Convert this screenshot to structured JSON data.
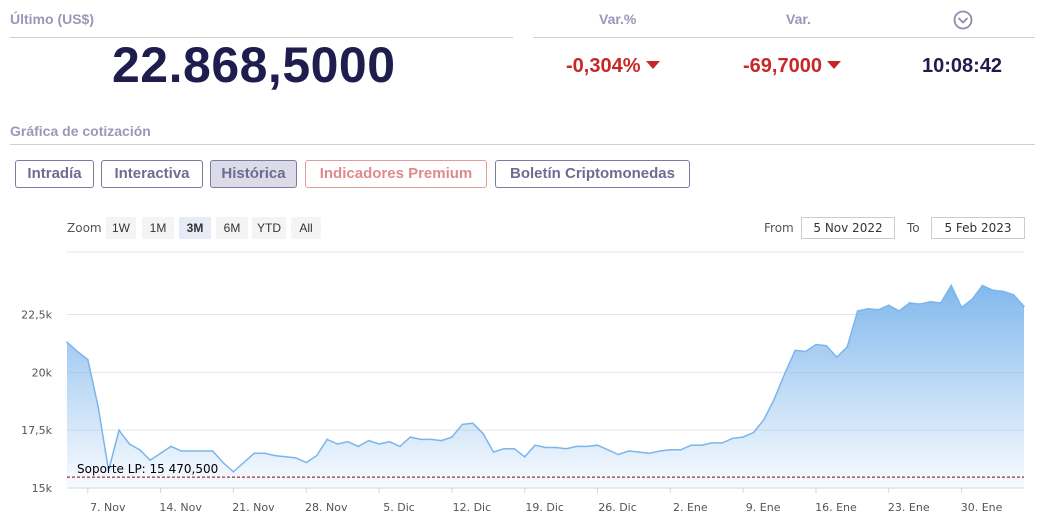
{
  "header": {
    "ultimo_label": "Último (US$)",
    "price": "22.868,5000",
    "varpct_label": "Var.%",
    "varpct_value": "-0,304%",
    "var_label": "Var.",
    "var_value": "-69,7000",
    "time": "10:08:42",
    "clock_icon": "chevron-down-circle-icon"
  },
  "section_title": "Gráfica de cotización",
  "tabs": [
    {
      "label": "Intradía",
      "active": false
    },
    {
      "label": "Interactiva",
      "active": false
    },
    {
      "label": "Histórica",
      "active": true
    },
    {
      "label": "Indicadores Premium",
      "active": false
    },
    {
      "label": "Boletín Criptomonedas",
      "active": false
    }
  ],
  "zoom": {
    "label": "Zoom",
    "options": [
      "1W",
      "1M",
      "3M",
      "6M",
      "YTD",
      "All"
    ],
    "selected": "3M"
  },
  "range": {
    "from_label": "From",
    "from_value": "5 Nov 2022",
    "to_label": "To",
    "to_value": "5 Feb 2023"
  },
  "colors": {
    "line": "#7cb5ec",
    "fill_top": "#7cb5ec",
    "support": "#8b0000",
    "negative": "#c62828",
    "dark": "#1f1d4d"
  },
  "chart_data": {
    "type": "area",
    "title": "",
    "xlabel": "",
    "ylabel": "",
    "x_start": "5 Nov 2022",
    "x_end": "5 Feb 2023",
    "x_ticks": [
      "7. Nov",
      "14. Nov",
      "21. Nov",
      "28. Nov",
      "5. Dic",
      "12. Dic",
      "19. Dic",
      "26. Dic",
      "2. Ene",
      "9. Ene",
      "16. Ene",
      "23. Ene",
      "30. Ene"
    ],
    "y_ticks": [
      "15k",
      "17,5k",
      "20k",
      "22,5k"
    ],
    "y_tick_values": [
      15000,
      17500,
      20000,
      22500
    ],
    "ylim": [
      15000,
      25200
    ],
    "grid": true,
    "support_line": {
      "label": "Soporte LP: 15 470,500",
      "value": 15470.5
    },
    "series": [
      {
        "x": [
          "5 Nov 2022",
          "6 Nov 2022",
          "7 Nov 2022",
          "8 Nov 2022",
          "9 Nov 2022",
          "10 Nov 2022",
          "11 Nov 2022",
          "12 Nov 2022",
          "13 Nov 2022",
          "14 Nov 2022",
          "15 Nov 2022",
          "16 Nov 2022",
          "17 Nov 2022",
          "18 Nov 2022",
          "19 Nov 2022",
          "20 Nov 2022",
          "21 Nov 2022",
          "22 Nov 2022",
          "23 Nov 2022",
          "24 Nov 2022",
          "25 Nov 2022",
          "26 Nov 2022",
          "27 Nov 2022",
          "28 Nov 2022",
          "29 Nov 2022",
          "30 Nov 2022",
          "1 Dic 2022",
          "2 Dic 2022",
          "3 Dic 2022",
          "4 Dic 2022",
          "5 Dic 2022",
          "6 Dic 2022",
          "7 Dic 2022",
          "8 Dic 2022",
          "9 Dic 2022",
          "10 Dic 2022",
          "11 Dic 2022",
          "12 Dic 2022",
          "13 Dic 2022",
          "14 Dic 2022",
          "15 Dic 2022",
          "16 Dic 2022",
          "17 Dic 2022",
          "18 Dic 2022",
          "19 Dic 2022",
          "20 Dic 2022",
          "21 Dic 2022",
          "22 Dic 2022",
          "23 Dic 2022",
          "24 Dic 2022",
          "25 Dic 2022",
          "26 Dic 2022",
          "27 Dic 2022",
          "28 Dic 2022",
          "29 Dic 2022",
          "30 Dic 2022",
          "31 Dic 2022",
          "1 Ene 2023",
          "2 Ene 2023",
          "3 Ene 2023",
          "4 Ene 2023",
          "5 Ene 2023",
          "6 Ene 2023",
          "7 Ene 2023",
          "8 Ene 2023",
          "9 Ene 2023",
          "10 Ene 2023",
          "11 Ene 2023",
          "12 Ene 2023",
          "13 Ene 2023",
          "14 Ene 2023",
          "15 Ene 2023",
          "16 Ene 2023",
          "17 Ene 2023",
          "18 Ene 2023",
          "19 Ene 2023",
          "20 Ene 2023",
          "21 Ene 2023",
          "22 Ene 2023",
          "23 Ene 2023",
          "24 Ene 2023",
          "25 Ene 2023",
          "26 Ene 2023",
          "27 Ene 2023",
          "28 Ene 2023",
          "29 Ene 2023",
          "30 Ene 2023",
          "31 Ene 2023",
          "1 Feb 2023",
          "2 Feb 2023",
          "3 Feb 2023",
          "4 Feb 2023",
          "5 Feb 2023"
        ],
        "values": [
          21300,
          20900,
          20550,
          18500,
          15750,
          17500,
          16900,
          16650,
          16200,
          16500,
          16800,
          16600,
          16600,
          16600,
          16600,
          16100,
          15700,
          16100,
          16500,
          16500,
          16400,
          16350,
          16300,
          16100,
          16400,
          17100,
          16900,
          17000,
          16800,
          17050,
          16900,
          17000,
          16800,
          17200,
          17100,
          17100,
          17050,
          17200,
          17750,
          17800,
          17350,
          16550,
          16700,
          16700,
          16350,
          16850,
          16750,
          16750,
          16700,
          16800,
          16800,
          16850,
          16650,
          16450,
          16600,
          16550,
          16500,
          16600,
          16650,
          16650,
          16850,
          16850,
          16950,
          16950,
          17150,
          17200,
          17400,
          17950,
          18850,
          19950,
          20950,
          20900,
          21200,
          21150,
          20650,
          21100,
          22650,
          22750,
          22700,
          22900,
          22650,
          23000,
          22950,
          23050,
          23000,
          23750,
          22800,
          23150,
          23750,
          23550,
          23500,
          23350,
          22850
        ]
      }
    ]
  }
}
